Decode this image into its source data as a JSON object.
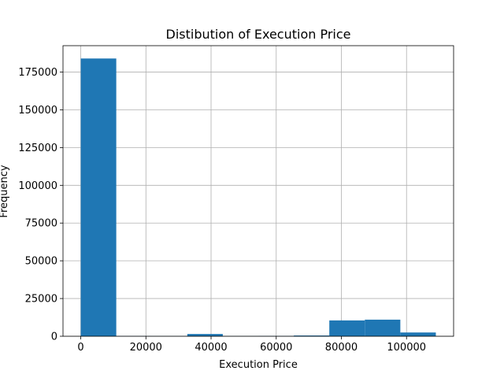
{
  "chart_data": {
    "type": "bar",
    "title": "Distibution of Execution Price",
    "xlabel": "Execution Price",
    "ylabel": "Frequency",
    "x_ticks": [
      0,
      20000,
      40000,
      60000,
      80000,
      100000
    ],
    "y_ticks": [
      0,
      25000,
      50000,
      75000,
      100000,
      125000,
      150000,
      175000
    ],
    "x_tick_labels": [
      "0",
      "20000",
      "40000",
      "60000",
      "80000",
      "100000"
    ],
    "y_tick_labels": [
      "0",
      "25000",
      "50000",
      "75000",
      "100000",
      "125000",
      "150000",
      "175000"
    ],
    "xlim": [
      -5450,
      114450
    ],
    "ylim": [
      0,
      192500
    ],
    "bins": [
      {
        "start": 0,
        "end": 10900,
        "value": 184000
      },
      {
        "start": 10900,
        "end": 21800,
        "value": 150
      },
      {
        "start": 21800,
        "end": 32700,
        "value": 100
      },
      {
        "start": 32700,
        "end": 43600,
        "value": 1500
      },
      {
        "start": 43600,
        "end": 54500,
        "value": 100
      },
      {
        "start": 54500,
        "end": 65400,
        "value": 200
      },
      {
        "start": 65400,
        "end": 76300,
        "value": 500
      },
      {
        "start": 76300,
        "end": 87200,
        "value": 10500
      },
      {
        "start": 87200,
        "end": 98100,
        "value": 11000
      },
      {
        "start": 98100,
        "end": 109000,
        "value": 2500
      }
    ],
    "bar_color": "#1f77b4",
    "grid": true,
    "legend": false
  }
}
